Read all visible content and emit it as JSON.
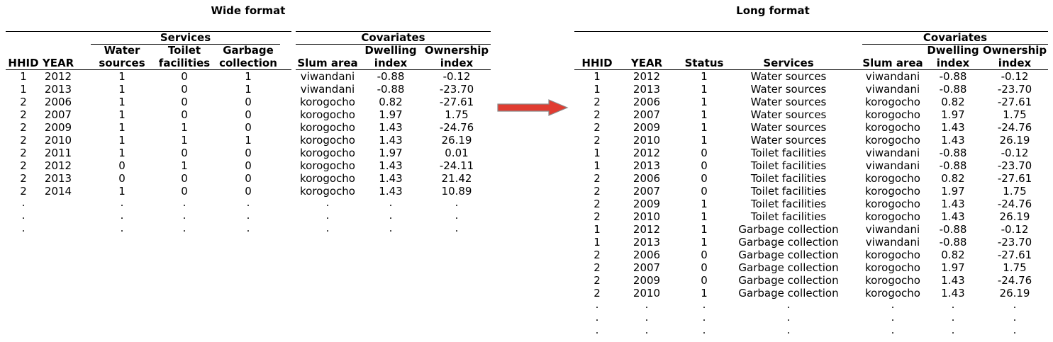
{
  "wide": {
    "title": "Wide format",
    "group_services": "Services",
    "group_covariates": "Covariates",
    "headers": [
      [
        "HHID"
      ],
      [
        "YEAR"
      ],
      [
        "Water",
        "sources"
      ],
      [
        "Toilet",
        "facilities"
      ],
      [
        "Garbage",
        "collection"
      ],
      [
        "Slum area"
      ],
      [
        "Dwelling",
        "index"
      ],
      [
        "Ownership",
        "index"
      ]
    ],
    "rows": [
      [
        "1",
        "2012",
        "1",
        "0",
        "1",
        "viwandani",
        "-0.88",
        "-0.12"
      ],
      [
        "1",
        "2013",
        "1",
        "0",
        "1",
        "viwandani",
        "-0.88",
        "-23.70"
      ],
      [
        "2",
        "2006",
        "1",
        "0",
        "0",
        "korogocho",
        "0.82",
        "-27.61"
      ],
      [
        "2",
        "2007",
        "1",
        "0",
        "0",
        "korogocho",
        "1.97",
        "1.75"
      ],
      [
        "2",
        "2009",
        "1",
        "1",
        "0",
        "korogocho",
        "1.43",
        "-24.76"
      ],
      [
        "2",
        "2010",
        "1",
        "1",
        "1",
        "korogocho",
        "1.43",
        "26.19"
      ],
      [
        "2",
        "2011",
        "1",
        "0",
        "0",
        "korogocho",
        "1.97",
        "0.01"
      ],
      [
        "2",
        "2012",
        "0",
        "1",
        "0",
        "korogocho",
        "1.43",
        "-24.11"
      ],
      [
        "2",
        "2013",
        "0",
        "0",
        "0",
        "korogocho",
        "1.43",
        "21.42"
      ],
      [
        "2",
        "2014",
        "1",
        "0",
        "0",
        "korogocho",
        "1.43",
        "10.89"
      ]
    ],
    "ellipsis": "."
  },
  "long": {
    "title": "Long format",
    "group_covariates": "Covariates",
    "headers": [
      [
        "HHID"
      ],
      [
        "YEAR"
      ],
      [
        "Status"
      ],
      [
        "Services"
      ],
      [
        "Slum area"
      ],
      [
        "Dwelling",
        "index"
      ],
      [
        "Ownership",
        "index"
      ]
    ],
    "rows": [
      [
        "1",
        "2012",
        "1",
        "Water sources",
        "viwandani",
        "-0.88",
        "-0.12"
      ],
      [
        "1",
        "2013",
        "1",
        "Water sources",
        "viwandani",
        "-0.88",
        "-23.70"
      ],
      [
        "2",
        "2006",
        "1",
        "Water sources",
        "korogocho",
        "0.82",
        "-27.61"
      ],
      [
        "2",
        "2007",
        "1",
        "Water sources",
        "korogocho",
        "1.97",
        "1.75"
      ],
      [
        "2",
        "2009",
        "1",
        "Water sources",
        "korogocho",
        "1.43",
        "-24.76"
      ],
      [
        "2",
        "2010",
        "1",
        "Water sources",
        "korogocho",
        "1.43",
        "26.19"
      ],
      [
        "1",
        "2012",
        "0",
        "Toilet facilities",
        "viwandani",
        "-0.88",
        "-0.12"
      ],
      [
        "1",
        "2013",
        "0",
        "Toilet facilities",
        "viwandani",
        "-0.88",
        "-23.70"
      ],
      [
        "2",
        "2006",
        "0",
        "Toilet facilities",
        "korogocho",
        "0.82",
        "-27.61"
      ],
      [
        "2",
        "2007",
        "0",
        "Toilet facilities",
        "korogocho",
        "1.97",
        "1.75"
      ],
      [
        "2",
        "2009",
        "1",
        "Toilet facilities",
        "korogocho",
        "1.43",
        "-24.76"
      ],
      [
        "2",
        "2010",
        "1",
        "Toilet facilities",
        "korogocho",
        "1.43",
        "26.19"
      ],
      [
        "1",
        "2012",
        "1",
        "Garbage collection",
        "viwandani",
        "-0.88",
        "-0.12"
      ],
      [
        "1",
        "2013",
        "1",
        "Garbage collection",
        "viwandani",
        "-0.88",
        "-23.70"
      ],
      [
        "2",
        "2006",
        "0",
        "Garbage collection",
        "korogocho",
        "0.82",
        "-27.61"
      ],
      [
        "2",
        "2007",
        "0",
        "Garbage collection",
        "korogocho",
        "1.97",
        "1.75"
      ],
      [
        "2",
        "2009",
        "0",
        "Garbage collection",
        "korogocho",
        "1.43",
        "-24.76"
      ],
      [
        "2",
        "2010",
        "1",
        "Garbage collection",
        "korogocho",
        "1.43",
        "26.19"
      ]
    ],
    "ellipsis": "."
  },
  "arrow_color": "#e03c31",
  "arrow_outline": "#8a8a8a"
}
